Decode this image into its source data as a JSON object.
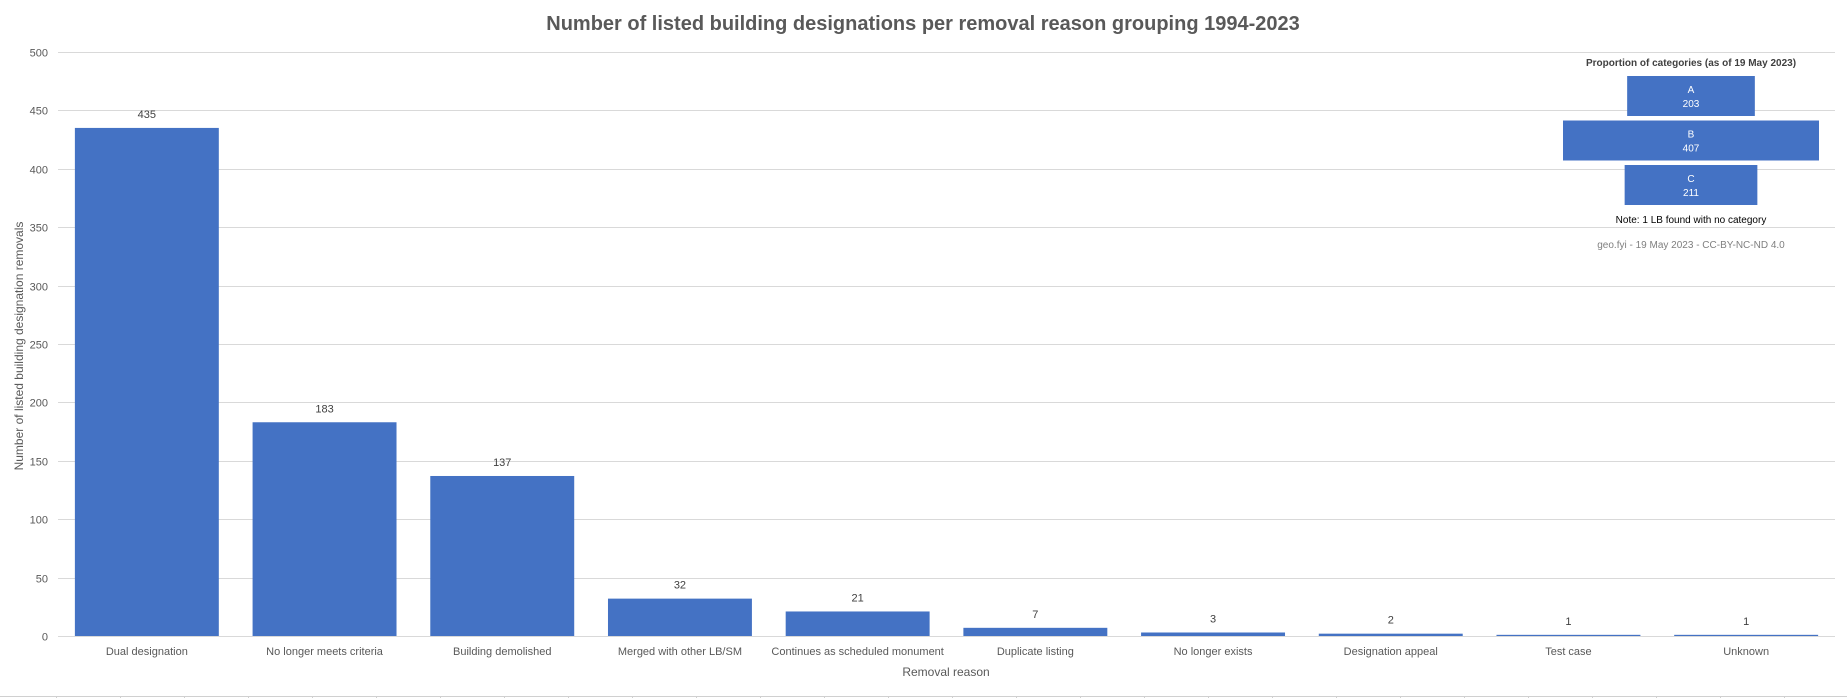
{
  "chart_data": {
    "type": "bar",
    "title": "Number of listed building designations per removal reason grouping 1994-2023",
    "xlabel": "Removal reason",
    "ylabel": "Number of listed building designation removals",
    "ylim": [
      0,
      500
    ],
    "yticks": [
      0,
      50,
      100,
      150,
      200,
      250,
      300,
      350,
      400,
      450,
      500
    ],
    "grid": true,
    "legend": "none",
    "bar_color": "#4472C4",
    "categories": [
      "Dual designation",
      "No longer meets criteria",
      "Building demolished",
      "Merged with other LB/SM",
      "Continues as scheduled monument",
      "Duplicate listing",
      "No longer exists",
      "Designation appeal",
      "Test case",
      "Unknown"
    ],
    "values": [
      435,
      183,
      137,
      32,
      21,
      7,
      3,
      2,
      1,
      1
    ],
    "data_labels": [
      "435",
      "183",
      "137",
      "32",
      "21",
      "7",
      "3",
      "2",
      "1",
      "1"
    ]
  },
  "inset": {
    "title": "Proportion of categories (as of 19 May 2023)",
    "type": "funnel",
    "items": [
      {
        "label": "A",
        "value": 203,
        "value_text": "203"
      },
      {
        "label": "B",
        "value": 407,
        "value_text": "407"
      },
      {
        "label": "C",
        "value": 211,
        "value_text": "211"
      }
    ],
    "note": "Note: 1 LB found with no category",
    "credit": "geo.fyi - 19 May 2023 - CC-BY-NC-ND 4.0"
  }
}
